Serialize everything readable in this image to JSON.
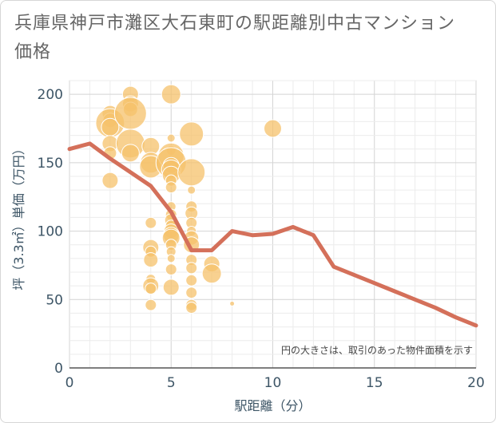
{
  "chart_data": {
    "type": "scatter",
    "title": "兵庫県神戸市灘区大石東町の駅距離別中古マンション価格",
    "xlabel": "駅距離（分）",
    "ylabel": "坪（3.3㎡）単価（万円）",
    "note": "円の大きさは、取引のあった物件面積を示す",
    "xlim": [
      0,
      20
    ],
    "ylim": [
      0,
      210
    ],
    "xticks": [
      "0",
      "5",
      "10",
      "15",
      "20"
    ],
    "yticks": [
      "0",
      "50",
      "100",
      "150",
      "200"
    ],
    "grid": true,
    "colors": {
      "bubble": "#f5c26b",
      "line": "#d4705a"
    },
    "points": [
      {
        "x": 2,
        "y": 186,
        "r": 10
      },
      {
        "x": 2,
        "y": 181,
        "r": 9
      },
      {
        "x": 2,
        "y": 179,
        "r": 18
      },
      {
        "x": 2,
        "y": 176,
        "r": 11
      },
      {
        "x": 2,
        "y": 164,
        "r": 10
      },
      {
        "x": 2,
        "y": 157,
        "r": 8
      },
      {
        "x": 2,
        "y": 137,
        "r": 10
      },
      {
        "x": 3,
        "y": 200,
        "r": 10
      },
      {
        "x": 3,
        "y": 193,
        "r": 10
      },
      {
        "x": 3,
        "y": 189,
        "r": 9
      },
      {
        "x": 3,
        "y": 186,
        "r": 20
      },
      {
        "x": 3,
        "y": 164,
        "r": 18
      },
      {
        "x": 3,
        "y": 157,
        "r": 11
      },
      {
        "x": 4,
        "y": 162,
        "r": 11
      },
      {
        "x": 4,
        "y": 150,
        "r": 13
      },
      {
        "x": 4,
        "y": 147,
        "r": 14
      },
      {
        "x": 4,
        "y": 106,
        "r": 7
      },
      {
        "x": 4,
        "y": 88,
        "r": 10
      },
      {
        "x": 4,
        "y": 85,
        "r": 7
      },
      {
        "x": 4,
        "y": 79,
        "r": 9
      },
      {
        "x": 4,
        "y": 65,
        "r": 6
      },
      {
        "x": 4,
        "y": 60,
        "r": 10
      },
      {
        "x": 4,
        "y": 58,
        "r": 7
      },
      {
        "x": 4,
        "y": 46,
        "r": 7
      },
      {
        "x": 5,
        "y": 200,
        "r": 12
      },
      {
        "x": 5,
        "y": 168,
        "r": 5
      },
      {
        "x": 5,
        "y": 159,
        "r": 6
      },
      {
        "x": 5,
        "y": 155,
        "r": 16
      },
      {
        "x": 5,
        "y": 150,
        "r": 19
      },
      {
        "x": 5,
        "y": 148,
        "r": 10
      },
      {
        "x": 5,
        "y": 145,
        "r": 12
      },
      {
        "x": 5,
        "y": 141,
        "r": 11
      },
      {
        "x": 5,
        "y": 137,
        "r": 7
      },
      {
        "x": 5,
        "y": 132,
        "r": 7
      },
      {
        "x": 5,
        "y": 118,
        "r": 6
      },
      {
        "x": 5,
        "y": 112,
        "r": 7
      },
      {
        "x": 5,
        "y": 108,
        "r": 8
      },
      {
        "x": 5,
        "y": 104,
        "r": 7
      },
      {
        "x": 5,
        "y": 100,
        "r": 9
      },
      {
        "x": 5,
        "y": 97,
        "r": 10
      },
      {
        "x": 5,
        "y": 95,
        "r": 11
      },
      {
        "x": 5,
        "y": 90,
        "r": 7
      },
      {
        "x": 5,
        "y": 85,
        "r": 6
      },
      {
        "x": 5,
        "y": 80,
        "r": 5
      },
      {
        "x": 5,
        "y": 72,
        "r": 7
      },
      {
        "x": 5,
        "y": 59,
        "r": 10
      },
      {
        "x": 6,
        "y": 171,
        "r": 15
      },
      {
        "x": 6,
        "y": 143,
        "r": 17
      },
      {
        "x": 6,
        "y": 130,
        "r": 5
      },
      {
        "x": 6,
        "y": 118,
        "r": 7
      },
      {
        "x": 6,
        "y": 113,
        "r": 8
      },
      {
        "x": 6,
        "y": 106,
        "r": 7
      },
      {
        "x": 6,
        "y": 100,
        "r": 6
      },
      {
        "x": 6,
        "y": 95,
        "r": 9
      },
      {
        "x": 6,
        "y": 90,
        "r": 10
      },
      {
        "x": 6,
        "y": 79,
        "r": 7
      },
      {
        "x": 6,
        "y": 73,
        "r": 7
      },
      {
        "x": 6,
        "y": 64,
        "r": 7
      },
      {
        "x": 6,
        "y": 55,
        "r": 7
      },
      {
        "x": 6,
        "y": 46,
        "r": 7
      },
      {
        "x": 6,
        "y": 44,
        "r": 7
      },
      {
        "x": 7,
        "y": 76,
        "r": 10
      },
      {
        "x": 7,
        "y": 69,
        "r": 12
      },
      {
        "x": 8,
        "y": 47,
        "r": 3
      },
      {
        "x": 10,
        "y": 175,
        "r": 11
      }
    ],
    "trend": {
      "x": [
        0,
        1,
        2,
        3,
        4,
        5,
        6,
        7,
        8,
        9,
        10,
        11,
        12,
        13,
        14,
        15,
        16,
        17,
        18,
        19,
        20
      ],
      "y": [
        160,
        164,
        153,
        143,
        133,
        114,
        86,
        86,
        100,
        97,
        98,
        103,
        97,
        74,
        68,
        62,
        56,
        50,
        44,
        37,
        31
      ]
    }
  }
}
